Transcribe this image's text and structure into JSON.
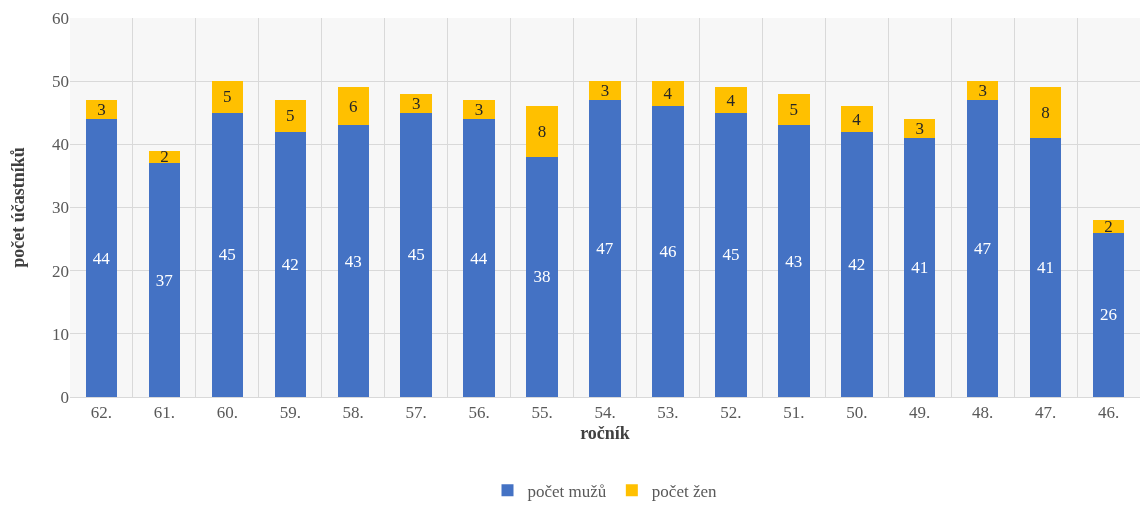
{
  "chart_data": {
    "type": "bar",
    "stacked": true,
    "xlabel": "ročník",
    "ylabel": "počet účastníků",
    "categories": [
      "62.",
      "61.",
      "60.",
      "59.",
      "58.",
      "57.",
      "56.",
      "55.",
      "54.",
      "53.",
      "52.",
      "51.",
      "50.",
      "49.",
      "48.",
      "47.",
      "46."
    ],
    "series": [
      {
        "name": "počet mužů",
        "color": "#4472c4",
        "values": [
          44,
          37,
          45,
          42,
          43,
          45,
          44,
          38,
          47,
          46,
          45,
          43,
          42,
          41,
          47,
          41,
          26
        ]
      },
      {
        "name": "počet žen",
        "color": "#ffc000",
        "values": [
          3,
          2,
          5,
          5,
          6,
          3,
          3,
          8,
          3,
          4,
          4,
          5,
          4,
          3,
          3,
          8,
          2
        ]
      }
    ],
    "ylim": [
      0,
      60
    ],
    "yticks": [
      0,
      10,
      20,
      30,
      40,
      50,
      60
    ],
    "grid": true,
    "legend": "bottom",
    "data_labels": true
  }
}
